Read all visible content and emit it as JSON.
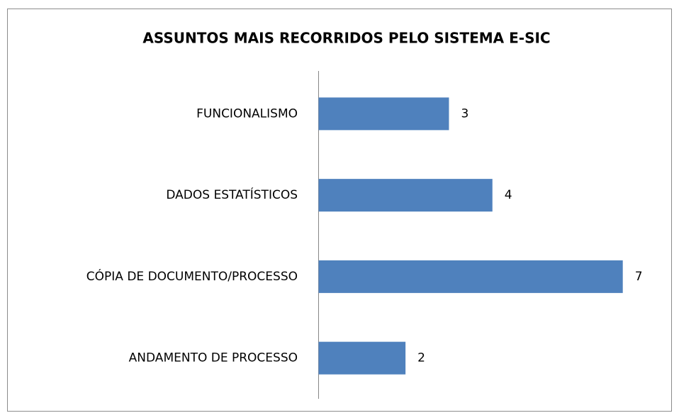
{
  "chart_data": {
    "type": "bar",
    "orientation": "horizontal",
    "title": "ASSUNTOS MAIS RECORRIDOS PELO SISTEMA E-SIC",
    "categories": [
      "FUNCIONALISMO",
      "DADOS ESTATÍSTICOS",
      "CÓPIA DE DOCUMENTO/PROCESSO",
      "ANDAMENTO DE PROCESSO"
    ],
    "values": [
      3,
      4,
      7,
      2
    ],
    "color": "#4f81bd",
    "xlim": [
      0,
      8
    ]
  }
}
